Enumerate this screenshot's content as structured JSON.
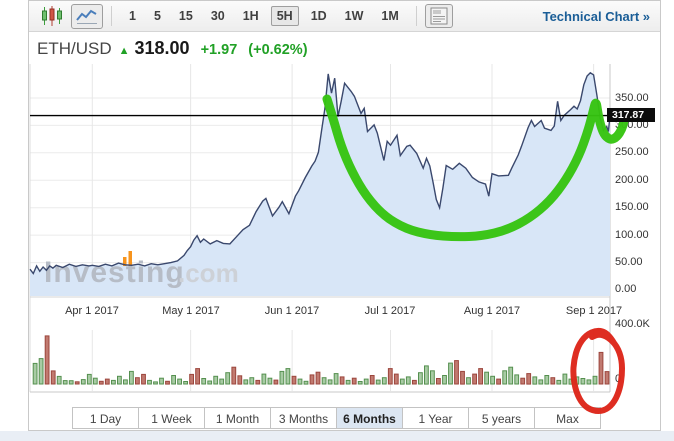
{
  "toolbar": {
    "chart_type_icons": [
      {
        "name": "candlestick-chart-icon",
        "selected": false
      },
      {
        "name": "line-chart-icon",
        "selected": true
      }
    ],
    "intervals": [
      "1",
      "5",
      "15",
      "30",
      "1H",
      "5H",
      "1D",
      "1W",
      "1M"
    ],
    "selected_interval": "5H",
    "panel_icon": "news-panel-icon",
    "technical_chart_link": "Technical Chart »"
  },
  "price_header": {
    "symbol": "ETH/USD",
    "arrow": "▲",
    "last": "318.00",
    "change": "+1.97",
    "change_percent": "(+0.62%)",
    "change_color": "#21a126"
  },
  "watermark": {
    "main": "Investing",
    "suffix": ".com",
    "accent_color": "#f7941d"
  },
  "range_buttons": {
    "items": [
      "1 Day",
      "1 Week",
      "1 Month",
      "3 Months",
      "6 Months",
      "1 Year",
      "5 years",
      "Max"
    ],
    "selected": "6 Months"
  },
  "chart_data": {
    "type": "area",
    "symbol": "ETH/USD",
    "timeframe": "6 Months",
    "line_color": "#3a486d",
    "fill_color": "#d8e6f7",
    "x_ticks": [
      {
        "label": "Apr 1 2017",
        "day": 19
      },
      {
        "label": "May 1 2017",
        "day": 49
      },
      {
        "label": "Jun 1 2017",
        "day": 80
      },
      {
        "label": "Jul 1 2017",
        "day": 110
      },
      {
        "label": "Aug 1 2017",
        "day": 141
      },
      {
        "label": "Sep 1 2017",
        "day": 172
      }
    ],
    "x_range_days": [
      0,
      177
    ],
    "price_axis": {
      "ticks": [
        "350.00",
        "300.00",
        "250.00",
        "200.00",
        "150.00",
        "100.00",
        "50.00",
        "0.00"
      ],
      "tick_values": [
        350,
        300,
        250,
        200,
        150,
        100,
        50,
        0
      ],
      "ylim": [
        0,
        412
      ]
    },
    "last_price_marker": {
      "label": "317.87",
      "value": 317.87
    },
    "series": [
      {
        "name": "ETH/USD price",
        "points": [
          [
            0,
            38
          ],
          [
            1,
            30
          ],
          [
            2,
            44
          ],
          [
            3,
            34
          ],
          [
            4,
            42
          ],
          [
            5,
            36
          ],
          [
            6,
            44
          ],
          [
            7,
            40
          ],
          [
            8,
            45
          ],
          [
            10,
            41
          ],
          [
            12,
            47
          ],
          [
            14,
            43
          ],
          [
            16,
            46
          ],
          [
            18,
            44
          ],
          [
            19,
            45
          ],
          [
            21,
            43
          ],
          [
            23,
            47
          ],
          [
            25,
            44
          ],
          [
            27,
            49
          ],
          [
            29,
            46
          ],
          [
            31,
            45
          ],
          [
            33,
            47
          ],
          [
            35,
            44
          ],
          [
            37,
            48
          ],
          [
            39,
            46
          ],
          [
            41,
            48
          ],
          [
            43,
            50
          ],
          [
            45,
            53
          ],
          [
            47,
            63
          ],
          [
            48,
            72
          ],
          [
            49,
            79
          ],
          [
            50,
            91
          ],
          [
            51,
            99
          ],
          [
            52,
            87
          ],
          [
            53,
            93
          ],
          [
            55,
            84
          ],
          [
            57,
            90
          ],
          [
            59,
            85
          ],
          [
            61,
            84
          ],
          [
            63,
            97
          ],
          [
            65,
            110
          ],
          [
            67,
            118
          ],
          [
            69,
            143
          ],
          [
            71,
            162
          ],
          [
            72,
            167
          ],
          [
            74,
            135
          ],
          [
            76,
            151
          ],
          [
            77,
            161
          ],
          [
            79,
            139
          ],
          [
            81,
            171
          ],
          [
            82,
            181
          ],
          [
            84,
            205
          ],
          [
            86,
            226
          ],
          [
            87,
            235
          ],
          [
            88,
            251
          ],
          [
            89,
            291
          ],
          [
            90,
            331
          ],
          [
            91,
            394
          ],
          [
            92,
            359
          ],
          [
            93,
            386
          ],
          [
            94,
            316
          ],
          [
            95,
            345
          ],
          [
            96,
            377
          ],
          [
            98,
            362
          ],
          [
            99,
            353
          ],
          [
            101,
            322
          ],
          [
            102,
            331
          ],
          [
            103,
            289
          ],
          [
            105,
            301
          ],
          [
            106,
            286
          ],
          [
            108,
            236
          ],
          [
            109,
            271
          ],
          [
            110,
            264
          ],
          [
            112,
            282
          ],
          [
            113,
            245
          ],
          [
            115,
            262
          ],
          [
            116,
            264
          ],
          [
            118,
            249
          ],
          [
            120,
            222
          ],
          [
            121,
            240
          ],
          [
            122,
            226
          ],
          [
            123,
            196
          ],
          [
            124,
            165
          ],
          [
            125,
            150
          ],
          [
            126,
            186
          ],
          [
            127,
            227
          ],
          [
            129,
            220
          ],
          [
            131,
            231
          ],
          [
            133,
            222
          ],
          [
            135,
            205
          ],
          [
            137,
            197
          ],
          [
            139,
            193
          ],
          [
            140,
            171
          ],
          [
            141,
            212
          ],
          [
            143,
            208
          ],
          [
            146,
            209
          ],
          [
            147,
            222
          ],
          [
            149,
            246
          ],
          [
            150,
            262
          ],
          [
            152,
            296
          ],
          [
            153,
            309
          ],
          [
            154,
            298
          ],
          [
            156,
            309
          ],
          [
            157,
            295
          ],
          [
            159,
            291
          ],
          [
            160,
            299
          ],
          [
            161,
            344
          ],
          [
            162,
            309
          ],
          [
            163,
            318
          ],
          [
            165,
            329
          ],
          [
            166,
            335
          ],
          [
            167,
            330
          ],
          [
            168,
            345
          ],
          [
            169,
            374
          ],
          [
            170,
            390
          ],
          [
            171,
            396
          ],
          [
            172,
            392
          ],
          [
            173,
            355
          ],
          [
            174,
            313
          ],
          [
            175,
            291
          ],
          [
            176,
            298
          ],
          [
            176.5,
            289
          ],
          [
            177,
            318
          ]
        ]
      }
    ],
    "volume": {
      "axis_ticks": [
        "400.0K",
        "0"
      ],
      "ylim_thousands": [
        0,
        400
      ],
      "up_color": "#a8cba4",
      "down_color": "#c17a70",
      "bars": [
        [
          150,
          "g"
        ],
        [
          185,
          "g"
        ],
        [
          350,
          "r"
        ],
        [
          95,
          "r"
        ],
        [
          55,
          "g"
        ],
        [
          25,
          "g"
        ],
        [
          24,
          "g"
        ],
        [
          16,
          "r"
        ],
        [
          32,
          "g"
        ],
        [
          70,
          "g"
        ],
        [
          42,
          "g"
        ],
        [
          20,
          "r"
        ],
        [
          36,
          "r"
        ],
        [
          26,
          "g"
        ],
        [
          56,
          "g"
        ],
        [
          30,
          "g"
        ],
        [
          92,
          "g"
        ],
        [
          46,
          "r"
        ],
        [
          70,
          "r"
        ],
        [
          26,
          "g"
        ],
        [
          15,
          "g"
        ],
        [
          42,
          "g"
        ],
        [
          20,
          "r"
        ],
        [
          62,
          "g"
        ],
        [
          36,
          "g"
        ],
        [
          18,
          "g"
        ],
        [
          70,
          "r"
        ],
        [
          112,
          "r"
        ],
        [
          40,
          "g"
        ],
        [
          22,
          "g"
        ],
        [
          56,
          "g"
        ],
        [
          36,
          "g"
        ],
        [
          82,
          "g"
        ],
        [
          122,
          "r"
        ],
        [
          60,
          "r"
        ],
        [
          30,
          "g"
        ],
        [
          46,
          "g"
        ],
        [
          26,
          "r"
        ],
        [
          72,
          "g"
        ],
        [
          42,
          "g"
        ],
        [
          28,
          "r"
        ],
        [
          92,
          "g"
        ],
        [
          112,
          "g"
        ],
        [
          56,
          "r"
        ],
        [
          36,
          "g"
        ],
        [
          20,
          "g"
        ],
        [
          66,
          "r"
        ],
        [
          86,
          "r"
        ],
        [
          46,
          "g"
        ],
        [
          30,
          "g"
        ],
        [
          76,
          "g"
        ],
        [
          52,
          "r"
        ],
        [
          26,
          "g"
        ],
        [
          42,
          "r"
        ],
        [
          18,
          "g"
        ],
        [
          36,
          "g"
        ],
        [
          62,
          "r"
        ],
        [
          28,
          "g"
        ],
        [
          46,
          "g"
        ],
        [
          112,
          "r"
        ],
        [
          72,
          "r"
        ],
        [
          36,
          "g"
        ],
        [
          52,
          "g"
        ],
        [
          26,
          "r"
        ],
        [
          82,
          "g"
        ],
        [
          132,
          "g"
        ],
        [
          96,
          "g"
        ],
        [
          40,
          "r"
        ],
        [
          62,
          "g"
        ],
        [
          152,
          "g"
        ],
        [
          170,
          "r"
        ],
        [
          92,
          "r"
        ],
        [
          46,
          "g"
        ],
        [
          72,
          "r"
        ],
        [
          112,
          "r"
        ],
        [
          86,
          "g"
        ],
        [
          56,
          "g"
        ],
        [
          36,
          "r"
        ],
        [
          96,
          "g"
        ],
        [
          122,
          "g"
        ],
        [
          66,
          "g"
        ],
        [
          42,
          "r"
        ],
        [
          76,
          "r"
        ],
        [
          52,
          "g"
        ],
        [
          30,
          "g"
        ],
        [
          62,
          "g"
        ],
        [
          46,
          "r"
        ],
        [
          26,
          "g"
        ],
        [
          72,
          "g"
        ],
        [
          36,
          "g"
        ],
        [
          52,
          "g"
        ],
        [
          40,
          "g"
        ],
        [
          30,
          "g"
        ],
        [
          56,
          "g"
        ],
        [
          230,
          "r"
        ],
        [
          90,
          "r"
        ]
      ]
    },
    "annotations": [
      {
        "name": "green-cup-curve-annotation",
        "shape": "freehand-curve",
        "color": "#35c410",
        "stroke_width": 9,
        "points": [
          [
            327,
            99
          ],
          [
            333,
            118
          ],
          [
            341,
            146
          ],
          [
            352,
            172
          ],
          [
            366,
            196
          ],
          [
            384,
            216
          ],
          [
            406,
            229
          ],
          [
            430,
            235
          ],
          [
            456,
            237
          ],
          [
            482,
            236
          ],
          [
            507,
            230
          ],
          [
            530,
            218
          ],
          [
            550,
            201
          ],
          [
            566,
            180
          ],
          [
            579,
            156
          ],
          [
            588,
            131
          ],
          [
            593,
            112
          ],
          [
            596,
            100
          ],
          [
            598,
            114
          ],
          [
            601,
            127
          ],
          [
            605,
            136
          ],
          [
            611,
            140
          ],
          [
            617,
            137
          ],
          [
            622,
            129
          ],
          [
            624,
            121
          ]
        ]
      },
      {
        "name": "red-volume-circle-annotation",
        "shape": "freehand-ellipse",
        "color": "#dd2418",
        "stroke_width": 6,
        "points": [
          [
            614,
            343
          ],
          [
            608,
            333
          ],
          [
            597,
            330
          ],
          [
            586,
            335
          ],
          [
            578,
            346
          ],
          [
            574,
            360
          ],
          [
            573,
            375
          ],
          [
            576,
            392
          ],
          [
            583,
            405
          ],
          [
            593,
            411
          ],
          [
            604,
            411
          ],
          [
            613,
            404
          ],
          [
            619,
            392
          ],
          [
            622,
            377
          ],
          [
            622,
            360
          ],
          [
            617,
            346
          ],
          [
            608,
            337
          ],
          [
            599,
            334
          ],
          [
            592,
            337
          ]
        ]
      }
    ]
  }
}
